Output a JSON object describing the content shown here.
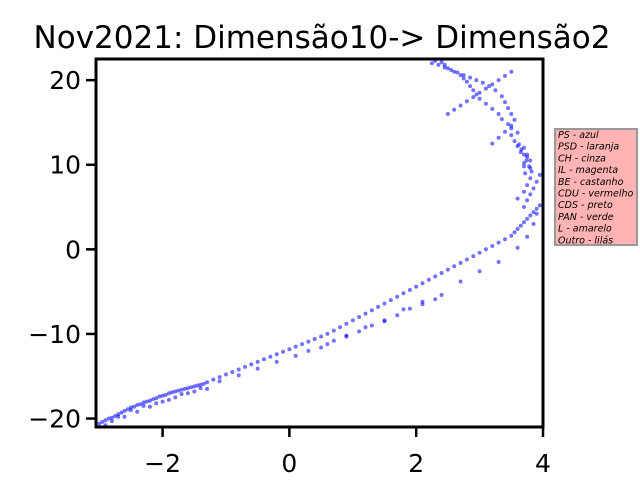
{
  "chart_data": {
    "type": "scatter",
    "title": "Nov2021: Dimensão10-> Dimensão2",
    "xlabel": "",
    "ylabel": "",
    "xlim": [
      -3.05,
      4.0
    ],
    "ylim": [
      -21.0,
      22.5
    ],
    "xticks": [
      -2,
      0,
      2,
      4
    ],
    "yticks": [
      -20,
      -10,
      0,
      10,
      20
    ],
    "tick_labels_x": [
      "−2",
      "0",
      "2",
      "4"
    ],
    "tick_labels_y": [
      "−20",
      "−10",
      "0",
      "10",
      "20"
    ],
    "grid": false,
    "point_color": "#0000ff",
    "legend": {
      "placement": "outside-right",
      "background": "#ffb3b3",
      "border": "#999999",
      "entries": [
        "PS - azul",
        "PSD - laranja",
        "CH - cinza",
        "IL - magenta",
        "BE - castanho",
        "CDU - vermelho",
        "CDS - preto",
        "PAN - verde",
        "L - amarelo",
        "Outro - lilás"
      ]
    },
    "series": [
      {
        "x": [
          -3.0,
          -2.95,
          -2.9,
          -2.85,
          -2.8,
          -2.75,
          -2.7,
          -2.65,
          -2.6,
          -2.55,
          -2.5,
          -2.45,
          -2.4,
          -2.35,
          -2.3,
          -2.25,
          -2.2,
          -2.15,
          -2.1,
          -2.05,
          -2.0,
          -1.95,
          -1.9,
          -1.85,
          -1.8,
          -1.75,
          -1.7,
          -1.65,
          -1.6,
          -1.55,
          -1.5,
          -1.45,
          -1.4,
          -1.35,
          -1.3,
          -1.2,
          -1.1,
          -1.0,
          -0.9,
          -0.8,
          -0.7,
          -0.6,
          -0.5,
          -0.4,
          -0.3,
          -0.2,
          -0.1,
          0.0,
          0.1,
          0.2,
          0.3,
          0.4,
          0.5,
          0.6,
          0.7,
          0.8,
          0.9,
          1.0,
          1.1,
          1.2,
          1.3,
          1.4,
          1.5,
          1.6,
          1.7,
          1.8,
          1.9,
          2.0,
          2.1,
          2.2,
          2.3,
          2.4,
          2.5,
          2.6,
          2.7,
          2.8,
          2.9,
          3.0,
          3.1,
          3.2,
          3.3,
          3.4,
          3.5,
          3.55,
          3.6,
          3.65,
          3.7,
          3.75,
          3.8,
          3.85,
          3.9,
          3.95,
          -2.9,
          -2.7,
          -2.5,
          -2.3,
          -2.1,
          -1.9,
          -1.7,
          -1.5,
          -1.3,
          0.3,
          0.6,
          0.9,
          1.2,
          1.5,
          1.8,
          2.1,
          2.4,
          2.7,
          3.0,
          3.3,
          3.6,
          3.75,
          3.85,
          3.9,
          3.7,
          3.75,
          3.8,
          3.85,
          3.9,
          3.95,
          3.8,
          3.7,
          3.75,
          3.65,
          3.6,
          3.55,
          3.5,
          3.7,
          3.75,
          3.8,
          3.7,
          3.72,
          3.6,
          3.5,
          3.45,
          3.35,
          3.3,
          3.2,
          3.1,
          3.0,
          2.95,
          2.9,
          2.85,
          2.8,
          2.75,
          2.7,
          2.6,
          2.5,
          2.45,
          2.4,
          2.3,
          3.2,
          3.3,
          3.4,
          3.5,
          3.55,
          3.5,
          3.45,
          3.4,
          3.35,
          3.25,
          3.15,
          3.05,
          2.95,
          2.85,
          2.75,
          2.65,
          2.55,
          2.45,
          2.35,
          2.25,
          2.5,
          2.6,
          2.7,
          2.8,
          2.9,
          3.0,
          3.1,
          3.2,
          3.3,
          3.4,
          3.5,
          3.6,
          3.7,
          3.75,
          3.8,
          3.82,
          3.78,
          3.74,
          3.7,
          3.66,
          3.62,
          2.3,
          2.1,
          1.9,
          1.7,
          1.5,
          1.3,
          1.1,
          0.9,
          0.7,
          0.5,
          0.1,
          -0.2,
          -0.5,
          -0.8,
          -1.1,
          -1.4,
          -1.6,
          -1.8,
          -2.0,
          -2.2,
          -2.4,
          -2.6,
          -2.8
        ],
        "y": [
          -20.6,
          -20.4,
          -20.2,
          -20.0,
          -19.9,
          -19.7,
          -19.5,
          -19.3,
          -19.1,
          -18.9,
          -18.7,
          -18.6,
          -18.4,
          -18.3,
          -18.1,
          -18.0,
          -17.9,
          -17.7,
          -17.6,
          -17.4,
          -17.3,
          -17.2,
          -17.0,
          -16.9,
          -16.8,
          -16.7,
          -16.6,
          -16.5,
          -16.4,
          -16.3,
          -16.2,
          -16.1,
          -16.0,
          -15.9,
          -15.7,
          -15.4,
          -15.1,
          -14.8,
          -14.5,
          -14.2,
          -13.9,
          -13.6,
          -13.3,
          -13.0,
          -12.7,
          -12.4,
          -12.1,
          -11.8,
          -11.5,
          -11.2,
          -10.9,
          -10.6,
          -10.3,
          -10.0,
          -9.6,
          -9.2,
          -8.8,
          -8.4,
          -8.0,
          -7.6,
          -7.2,
          -6.8,
          -6.4,
          -6.0,
          -5.6,
          -5.2,
          -4.8,
          -4.4,
          -4.0,
          -3.6,
          -3.2,
          -2.8,
          -2.4,
          -2.0,
          -1.6,
          -1.2,
          -0.8,
          -0.4,
          0.0,
          0.4,
          0.8,
          1.2,
          1.6,
          2.0,
          2.4,
          2.8,
          3.2,
          3.6,
          4.0,
          4.4,
          4.8,
          5.2,
          -20.8,
          -19.8,
          -19.0,
          -18.5,
          -18.2,
          -17.8,
          -17.1,
          -16.8,
          -16.5,
          -12.0,
          -11.2,
          -10.2,
          -9.2,
          -8.4,
          -7.1,
          -6.2,
          -5.4,
          -3.8,
          -2.6,
          -1.5,
          0.2,
          1.5,
          3.0,
          4.2,
          5.0,
          5.8,
          6.5,
          7.2,
          8.0,
          8.8,
          9.6,
          10.2,
          10.9,
          11.5,
          12.2,
          12.8,
          13.5,
          12.0,
          11.2,
          10.5,
          9.8,
          9.0,
          13.8,
          14.3,
          14.8,
          15.4,
          16.0,
          16.6,
          17.2,
          17.8,
          18.3,
          18.8,
          19.3,
          19.8,
          20.2,
          20.6,
          21.0,
          21.4,
          21.8,
          22.1,
          22.3,
          12.5,
          13.2,
          13.9,
          14.6,
          15.3,
          16.0,
          16.7,
          17.4,
          18.1,
          18.8,
          19.3,
          19.7,
          20.0,
          20.3,
          20.6,
          20.9,
          21.2,
          21.5,
          21.8,
          22.0,
          16.0,
          16.5,
          17.0,
          17.5,
          18.0,
          18.5,
          19.0,
          19.5,
          20.0,
          20.5,
          21.0,
          6.0,
          6.8,
          7.6,
          8.4,
          9.2,
          9.8,
          10.5,
          11.2,
          11.8,
          12.4,
          -5.9,
          -6.5,
          -7.0,
          -7.8,
          -8.5,
          -9.0,
          -9.7,
          -10.3,
          -10.8,
          -11.6,
          -12.6,
          -13.3,
          -14.1,
          -14.9,
          -15.6,
          -16.4,
          -17.0,
          -17.5,
          -18.0,
          -18.6,
          -19.2,
          -19.8,
          -20.3
        ]
      }
    ]
  }
}
